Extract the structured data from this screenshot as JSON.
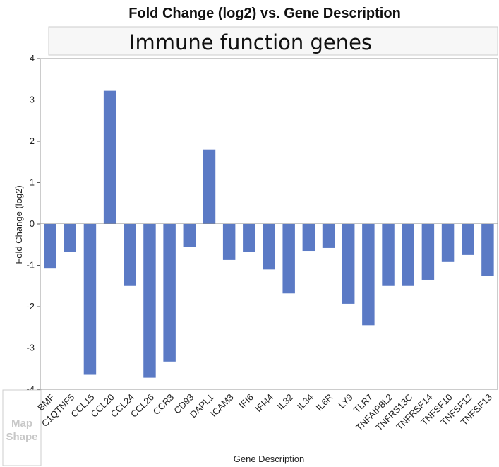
{
  "chart_data": {
    "type": "bar",
    "title": "Fold Change (log2) vs. Gene Description",
    "subtitle": "Immune function genes",
    "xlabel": "Gene Description",
    "ylabel": "Fold Change (log2)",
    "ylim": [
      -4,
      4
    ],
    "yticks": [
      "4",
      "3",
      "2",
      "1",
      "0",
      "-1",
      "-2",
      "-3",
      "-4"
    ],
    "legend_panel": "Map Shape",
    "grid": false,
    "bar_color": "#5b7ac5",
    "categories": [
      "BMF",
      "C1QTNF5",
      "CCL15",
      "CCL20",
      "CCL24",
      "CCL26",
      "CCR3",
      "CD93",
      "DAPL1",
      "ICAM3",
      "IFI6",
      "IFI44",
      "IL32",
      "IL34",
      "IL6R",
      "LY9",
      "TLR7",
      "TNFAIP8L2",
      "TNFRS13C",
      "TNFRSF14",
      "TNFSF10",
      "TNFSF12",
      "TNFSF13"
    ],
    "values": [
      -1.08,
      -0.68,
      -3.65,
      3.22,
      -1.5,
      -3.72,
      -3.33,
      -0.55,
      1.8,
      -0.87,
      -0.68,
      -1.1,
      -1.68,
      -0.65,
      -0.58,
      -1.93,
      -2.45,
      -1.5,
      -1.5,
      -1.35,
      -0.92,
      -0.75,
      -1.25
    ]
  }
}
